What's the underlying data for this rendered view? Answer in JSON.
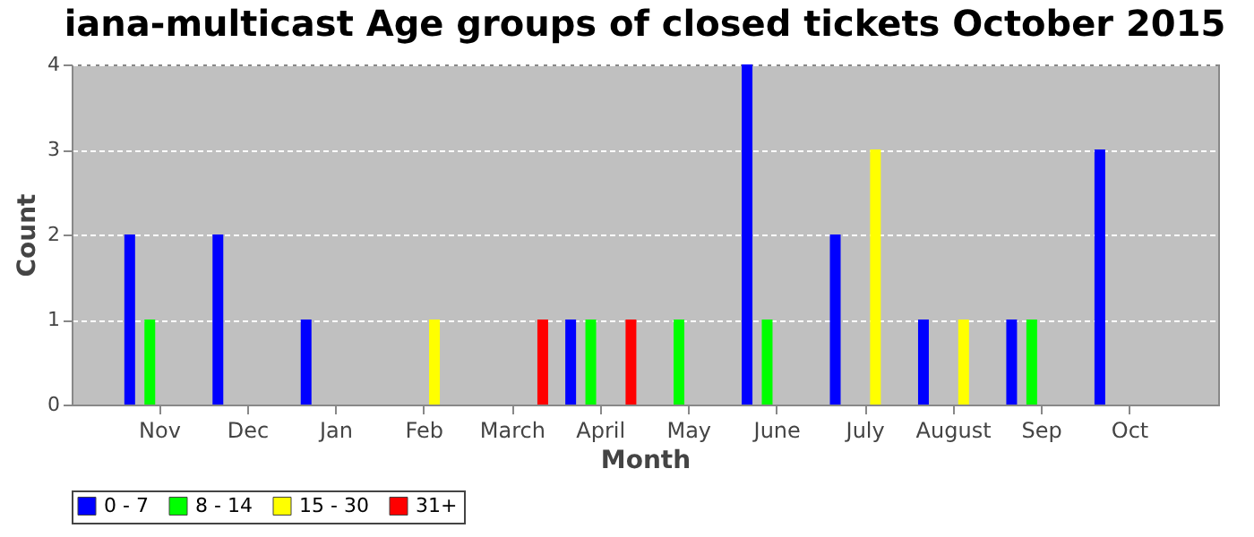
{
  "chart_data": {
    "type": "bar",
    "title": "iana-multicast Age groups of closed tickets October 2015",
    "xlabel": "Month",
    "ylabel": "Count",
    "categories": [
      "Nov",
      "Dec",
      "Jan",
      "Feb",
      "March",
      "April",
      "May",
      "June",
      "July",
      "August",
      "Sep",
      "Oct"
    ],
    "series": [
      {
        "name": "0 - 7",
        "color": "#0000ff",
        "values": [
          2,
          2,
          1,
          null,
          null,
          1,
          null,
          4,
          2,
          1,
          1,
          3
        ]
      },
      {
        "name": "8 - 14",
        "color": "#00ff00",
        "values": [
          1,
          null,
          null,
          null,
          null,
          1,
          1,
          1,
          null,
          null,
          1,
          null
        ]
      },
      {
        "name": "15 - 30",
        "color": "#ffff00",
        "values": [
          null,
          null,
          null,
          1,
          null,
          null,
          null,
          null,
          3,
          1,
          null,
          null
        ]
      },
      {
        "name": "31+",
        "color": "#ff0000",
        "values": [
          null,
          null,
          null,
          null,
          1,
          1,
          null,
          null,
          null,
          null,
          null,
          null
        ]
      }
    ],
    "ylim": [
      0,
      4
    ],
    "yticks": [
      0,
      1,
      2,
      3,
      4
    ],
    "grid": "y",
    "legend": "bottom"
  }
}
